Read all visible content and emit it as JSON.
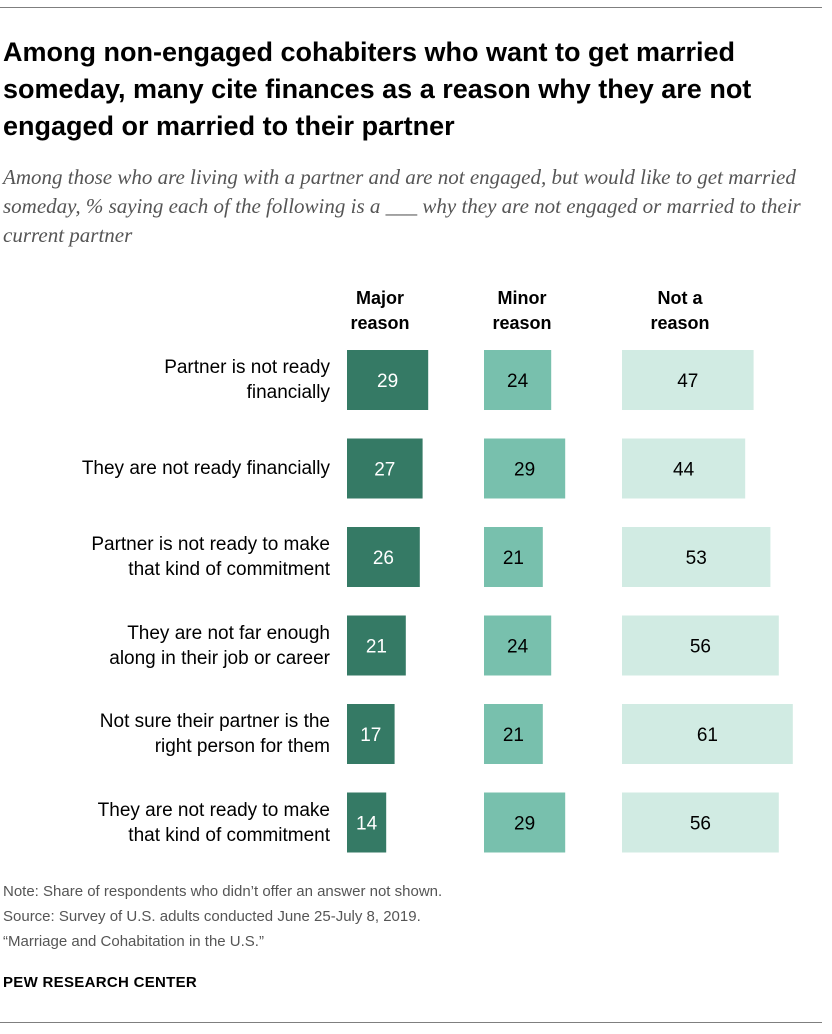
{
  "title": "Among non-engaged cohabiters who want to get married someday, many cite finances as a reason why they are not engaged or married to their partner",
  "subtitle": "Among those who are living with a partner and are not engaged, but would like to get married someday, % saying each of the following is a ___ why they are not engaged or married to their current partner",
  "note": "Note: Share of respondents who didn’t offer an answer not shown.",
  "source": "Source: Survey of U.S. adults conducted June 25-July 8, 2019.",
  "report": "“Marriage and Cohabitation in the U.S.”",
  "brand": "PEW RESEARCH CENTER",
  "colors": {
    "major": "#357a65",
    "minor": "#78c0ad",
    "not": "#d1ebe3",
    "label_dark_bg": "#ffffff",
    "label_light_bg": "#000000"
  },
  "chart_data": {
    "type": "bar",
    "categories": [
      [
        "Partner is not ready",
        "financially"
      ],
      [
        "They are not ready financially"
      ],
      [
        "Partner is not ready to make",
        "that kind of commitment"
      ],
      [
        "They are not far enough",
        "along in their job or career"
      ],
      [
        "Not sure their partner is the",
        "right person for them"
      ],
      [
        "They are not ready to make",
        "that kind of commitment"
      ]
    ],
    "series": [
      {
        "name": "Major reason",
        "header": [
          "Major",
          "reason"
        ],
        "values": [
          29,
          27,
          26,
          21,
          17,
          14
        ]
      },
      {
        "name": "Minor reason",
        "header": [
          "Minor",
          "reason"
        ],
        "values": [
          24,
          29,
          21,
          24,
          21,
          29
        ]
      },
      {
        "name": "Not a reason",
        "header": [
          "Not a",
          "reason"
        ],
        "values": [
          47,
          44,
          53,
          56,
          61,
          56
        ]
      }
    ],
    "unit": "%"
  }
}
